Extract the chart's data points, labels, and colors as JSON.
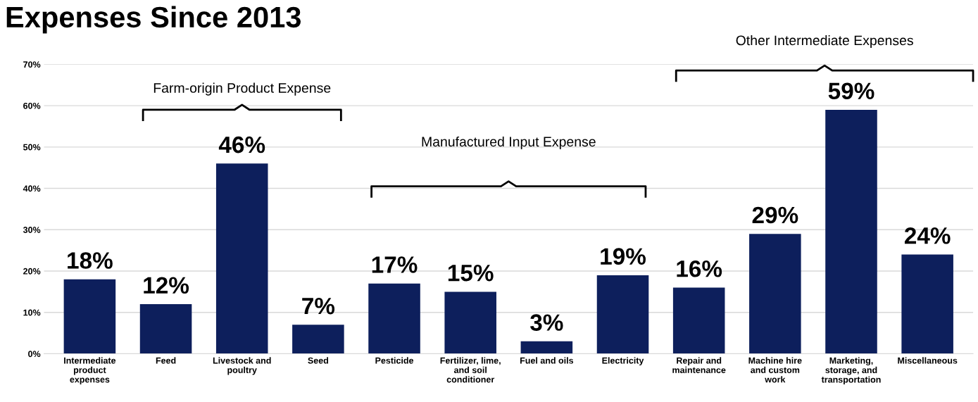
{
  "chart_data": {
    "type": "bar",
    "title": "Expenses Since 2013",
    "categories": [
      "Intermediate\nproduct\nexpenses",
      "Feed",
      "Livestock and\npoultry",
      "Seed",
      "Pesticide",
      "Fertilizer, lime,\nand soil\nconditioner",
      "Fuel and oils",
      "Electricity",
      "Repair and\nmaintenance",
      "Machine hire\nand custom\nwork",
      "Marketing,\nstorage, and\ntransportation",
      "Miscellaneous"
    ],
    "values": [
      18,
      12,
      46,
      7,
      17,
      15,
      3,
      19,
      16,
      29,
      59,
      24
    ],
    "color": "#0d1f5c",
    "value_labels": [
      "18%",
      "12%",
      "46%",
      "7%",
      "17%",
      "15%",
      "3%",
      "19%",
      "16%",
      "29%",
      "59%",
      "24%"
    ],
    "ylim": [
      0,
      70
    ],
    "yticks": [
      {
        "value": 0,
        "label": "0%"
      },
      {
        "value": 10,
        "label": "10%"
      },
      {
        "value": 20,
        "label": "20%"
      },
      {
        "value": 30,
        "label": "30%"
      },
      {
        "value": 40,
        "label": "40%"
      },
      {
        "value": 50,
        "label": "50%"
      },
      {
        "value": 60,
        "label": "60%"
      },
      {
        "value": 70,
        "label": "70%"
      }
    ],
    "grid": "y",
    "annotations": [
      "Farm-origin Product Expense",
      "Manufactured Input Expense",
      "Other Intermediate Expenses"
    ]
  }
}
